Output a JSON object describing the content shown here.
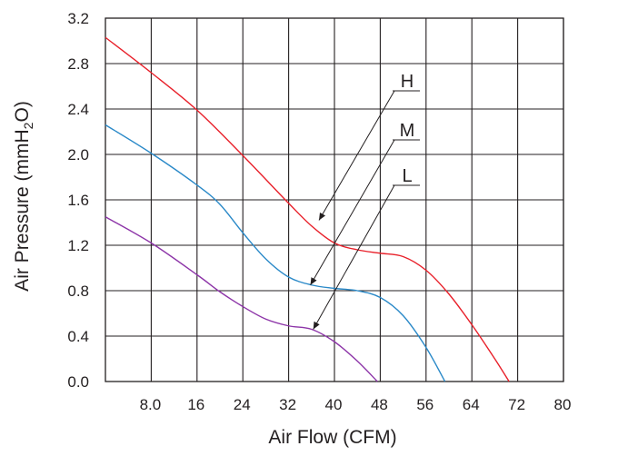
{
  "chart_data": {
    "type": "line",
    "xlabel": "Air Flow (CFM)",
    "ylabel_parts": [
      "Air Pressure (mmH",
      "2",
      "O)"
    ],
    "x_ticks": [
      "8.0",
      "16",
      "24",
      "32",
      "40",
      "48",
      "56",
      "64",
      "72",
      "80"
    ],
    "x_tick_values": [
      8,
      16,
      24,
      32,
      40,
      48,
      56,
      64,
      72,
      80
    ],
    "y_ticks": [
      "0.0",
      "0.4",
      "0.8",
      "1.2",
      "1.6",
      "2.0",
      "2.4",
      "2.8",
      "3.2"
    ],
    "y_tick_values": [
      0.0,
      0.4,
      0.8,
      1.2,
      1.6,
      2.0,
      2.4,
      2.8,
      3.2
    ],
    "xlim": [
      0,
      80
    ],
    "ylim": [
      0,
      3.2
    ],
    "grid": true,
    "series": [
      {
        "name": "H",
        "color": "#e8202a",
        "x": [
          0,
          8,
          16,
          24,
          32,
          36,
          40,
          44,
          48,
          52,
          56,
          60,
          64,
          68,
          70.5
        ],
        "y": [
          3.03,
          2.72,
          2.39,
          1.99,
          1.57,
          1.37,
          1.22,
          1.16,
          1.13,
          1.1,
          0.98,
          0.77,
          0.5,
          0.2,
          0.0
        ]
      },
      {
        "name": "M",
        "color": "#2a89c8",
        "x": [
          0,
          8,
          16,
          20,
          24,
          28,
          32,
          36,
          40,
          44,
          48,
          52,
          56,
          59.3
        ],
        "y": [
          2.26,
          2.01,
          1.73,
          1.56,
          1.31,
          1.08,
          0.92,
          0.85,
          0.82,
          0.8,
          0.74,
          0.58,
          0.3,
          0.0
        ]
      },
      {
        "name": "L",
        "color": "#8d35a8",
        "x": [
          0,
          8,
          16,
          20,
          24,
          28,
          32,
          36,
          40,
          44,
          47.5
        ],
        "y": [
          1.45,
          1.22,
          0.94,
          0.79,
          0.66,
          0.55,
          0.49,
          0.46,
          0.35,
          0.18,
          0.0
        ]
      }
    ],
    "annotations": [
      {
        "text": "H",
        "points_to_series": "H"
      },
      {
        "text": "M",
        "points_to_series": "M"
      },
      {
        "text": "L",
        "points_to_series": "L"
      }
    ]
  }
}
